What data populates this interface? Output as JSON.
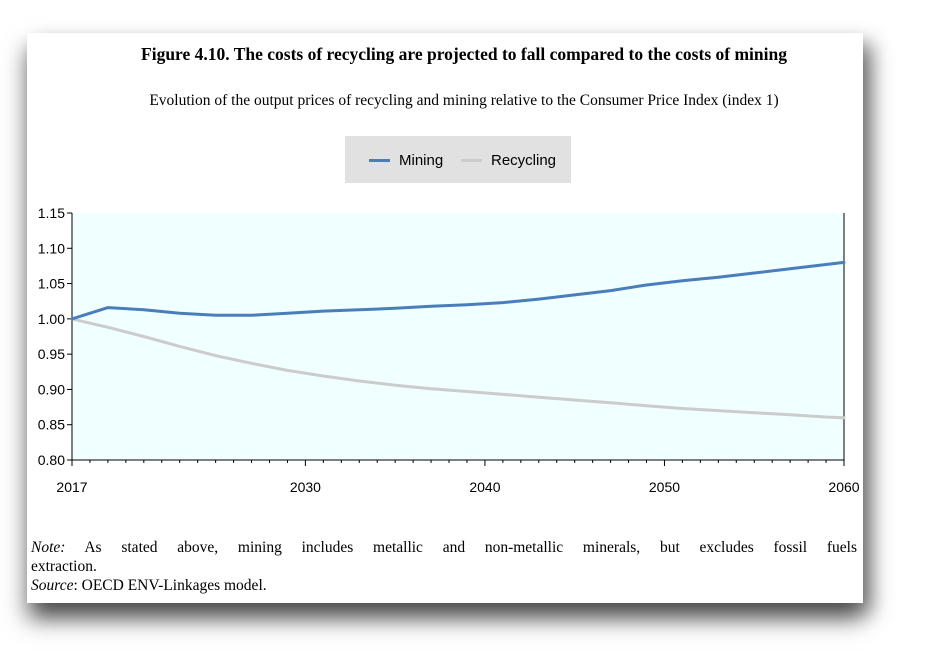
{
  "figure": {
    "title": "Figure 4.10. The costs of recycling are projected to fall compared to the costs of mining",
    "subtitle": "Evolution of the output prices of recycling and mining relative to the Consumer Price Index (index 1)"
  },
  "legend": {
    "items": [
      {
        "label": "Mining",
        "color": "#4a7ebb"
      },
      {
        "label": "Recycling",
        "color": "#cccccc"
      }
    ]
  },
  "notes": {
    "note_label": "Note:",
    "note_text": "As stated above, mining includes metallic and non-metallic minerals, but excludes fossil fuels",
    "note_text_cont": "extraction.",
    "source_label": "Source",
    "source_text": ": OECD ENV-Linkages model."
  },
  "chart_data": {
    "type": "line",
    "title": "Figure 4.10. The costs of recycling are projected to fall compared to the costs of mining",
    "subtitle": "Evolution of the output prices of recycling and mining relative to the Consumer Price Index (index 1)",
    "xlabel": "",
    "ylabel": "",
    "x": [
      2017,
      2019,
      2021,
      2023,
      2025,
      2027,
      2029,
      2031,
      2033,
      2035,
      2037,
      2039,
      2041,
      2043,
      2045,
      2047,
      2049,
      2051,
      2053,
      2055,
      2057,
      2059,
      2060
    ],
    "xlim": [
      2017,
      2060
    ],
    "x_ticks": [
      "2017",
      "2030",
      "2040",
      "2050",
      "2060"
    ],
    "x_tick_values": [
      2017,
      2030,
      2040,
      2050,
      2060
    ],
    "ylim": [
      0.8,
      1.15
    ],
    "y_ticks": [
      "0.80",
      "0.85",
      "0.90",
      "0.95",
      "1.00",
      "1.05",
      "1.10",
      "1.15"
    ],
    "y_tick_values": [
      0.8,
      0.85,
      0.9,
      0.95,
      1.0,
      1.05,
      1.1,
      1.15
    ],
    "grid": false,
    "legend_position": "top-center",
    "plot_background": "#f0ffff",
    "series": [
      {
        "name": "Mining",
        "color": "#4a7ebb",
        "values": [
          1.0,
          1.016,
          1.013,
          1.008,
          1.005,
          1.005,
          1.008,
          1.011,
          1.013,
          1.015,
          1.018,
          1.02,
          1.023,
          1.028,
          1.034,
          1.04,
          1.048,
          1.054,
          1.059,
          1.065,
          1.071,
          1.077,
          1.08
        ]
      },
      {
        "name": "Recycling",
        "color": "#cccccc",
        "values": [
          1.0,
          0.988,
          0.975,
          0.961,
          0.948,
          0.937,
          0.927,
          0.919,
          0.912,
          0.906,
          0.901,
          0.897,
          0.893,
          0.889,
          0.885,
          0.881,
          0.877,
          0.873,
          0.87,
          0.867,
          0.864,
          0.861,
          0.86
        ]
      }
    ]
  }
}
